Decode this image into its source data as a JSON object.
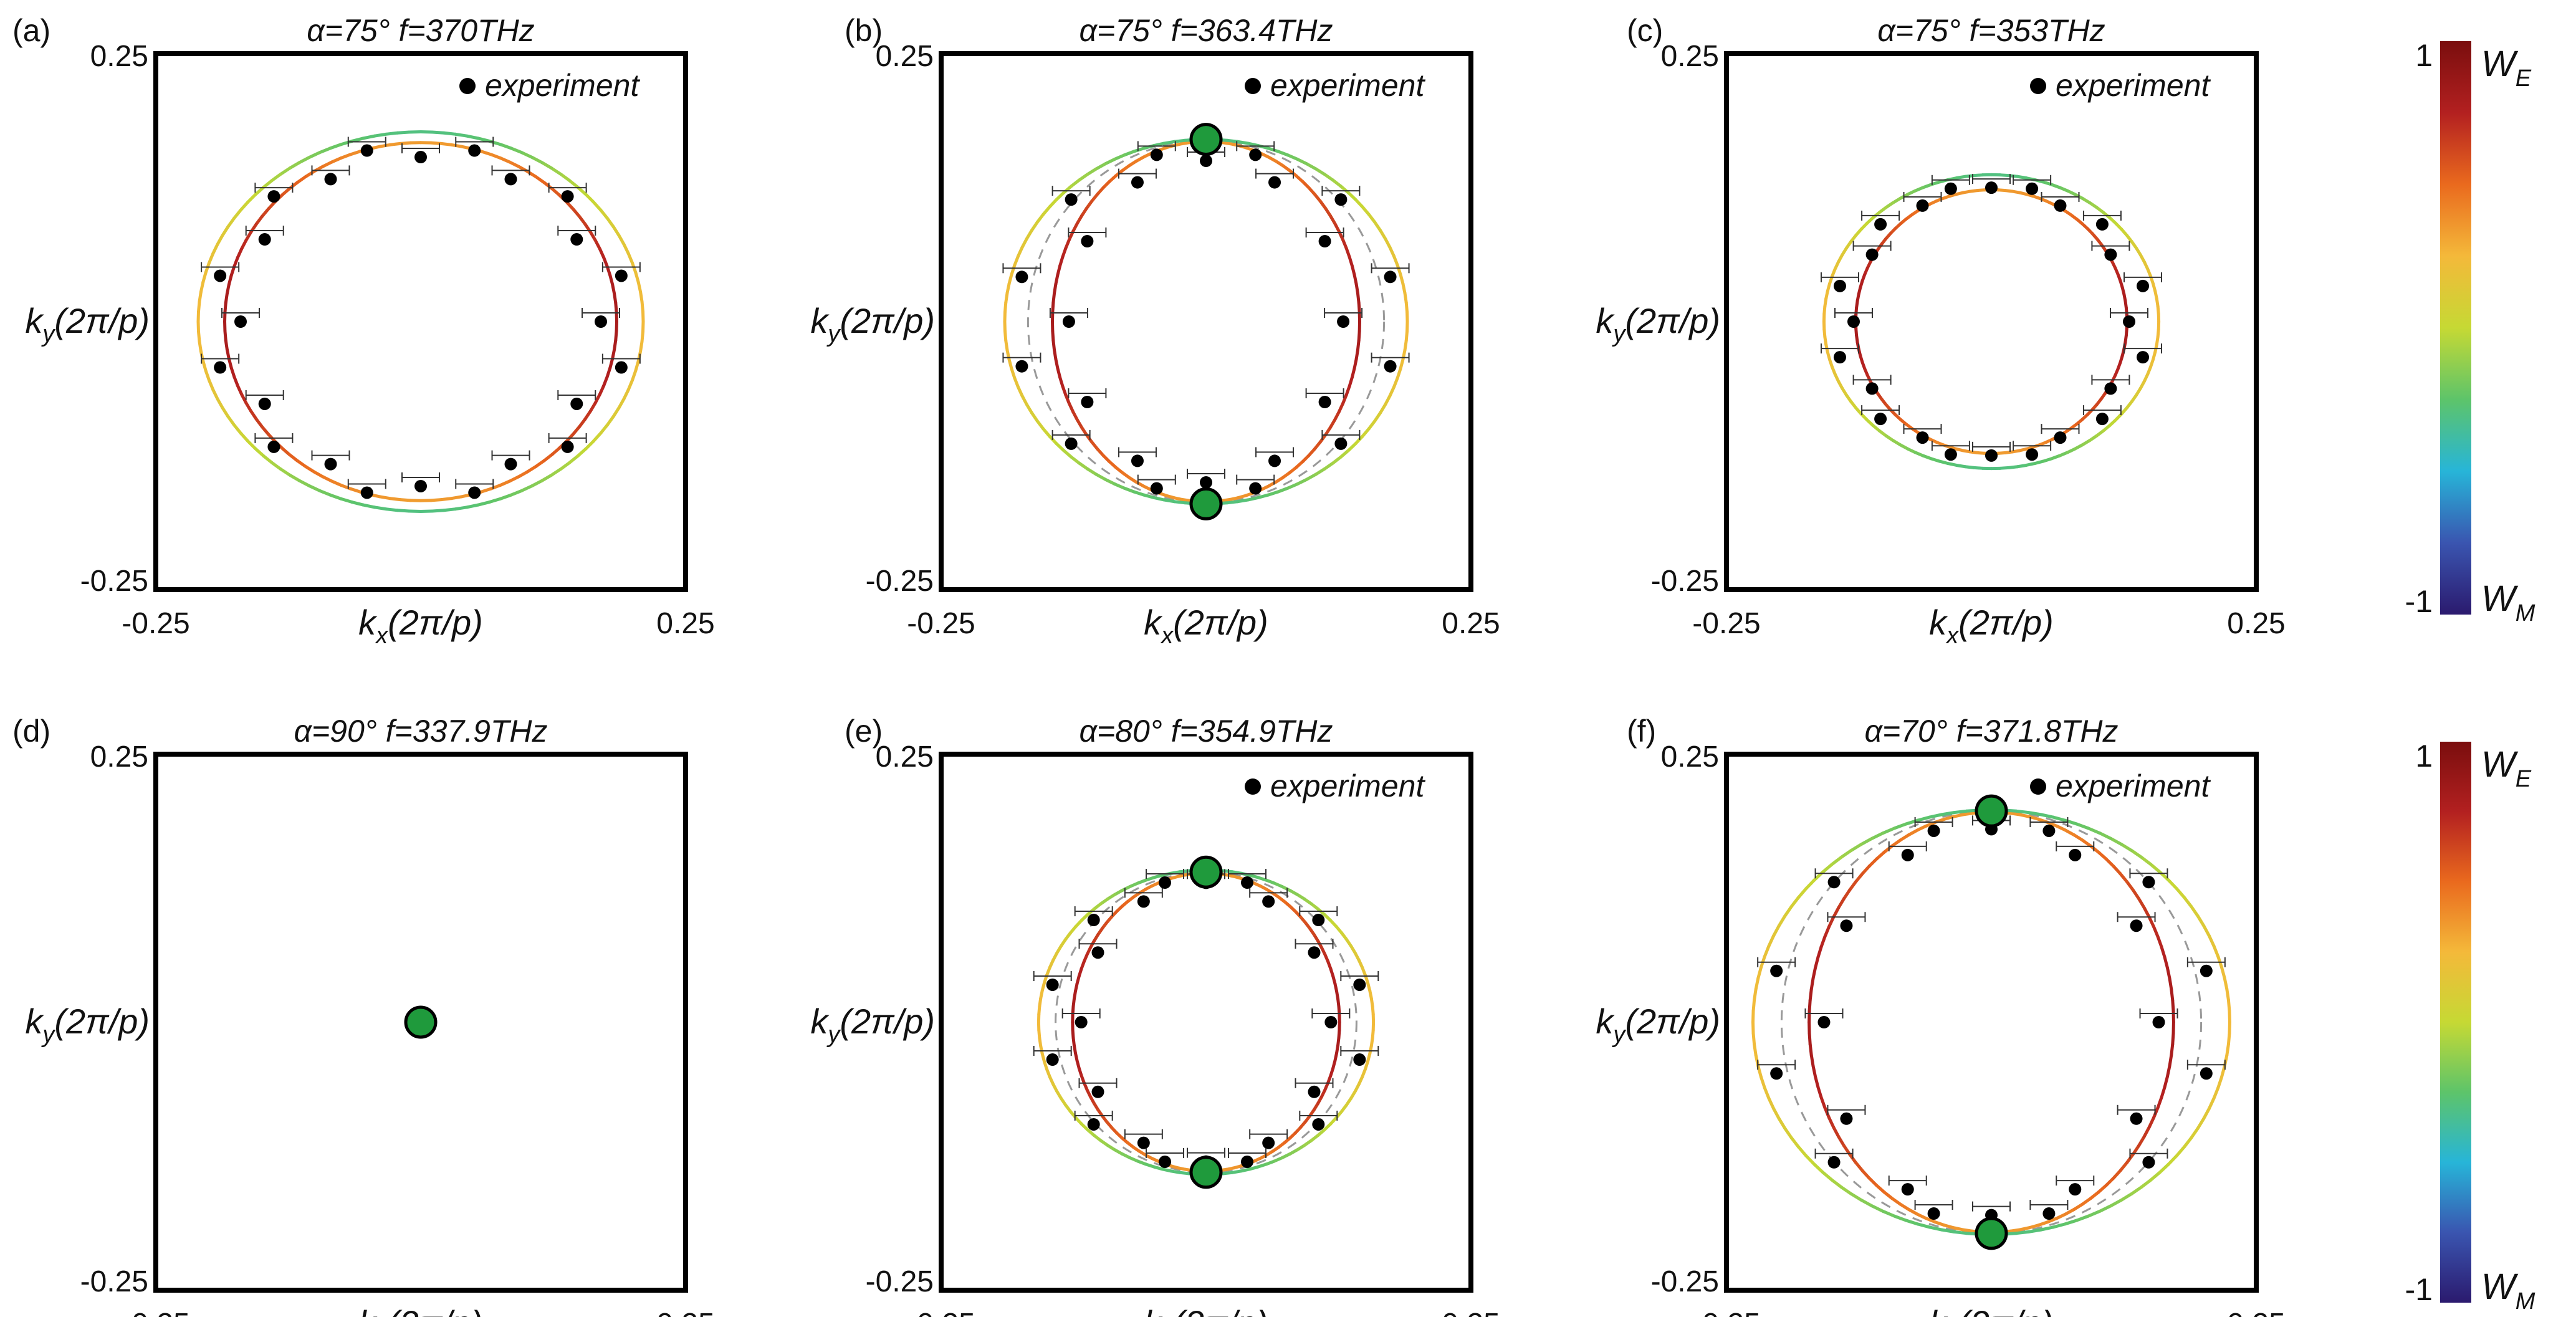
{
  "panel_defaults": {
    "xlabel": "k",
    "xlabel_sub": "x",
    "xlabel_unit": "(2π/p)",
    "ylabel": "k",
    "ylabel_sub": "y",
    "ylabel_unit": "(2π/p)",
    "xlim": [
      -0.25,
      0.25
    ],
    "ylim": [
      -0.25,
      0.25
    ],
    "x_ticks": [
      "-0.25",
      "0.25"
    ],
    "y_ticks": [
      "0.25",
      "-0.25"
    ],
    "legend_label": "experiment",
    "legend_position": "top-right"
  },
  "chart_data": [
    {
      "type": "scatter",
      "panel_label": "(a)",
      "title": "α=75° f=370THz",
      "legend": true,
      "bands": [
        {
          "rx": 0.185,
          "ry": 0.167,
          "color_by": "inner"
        },
        {
          "rx": 0.21,
          "ry": 0.177,
          "color_by": "outer"
        }
      ],
      "dashed_rings": [],
      "bic_points": [],
      "experiment_points": [
        {
          "r": 0.17,
          "angles": [
            0,
            30,
            60,
            90,
            120,
            150,
            180,
            210,
            240,
            270,
            300,
            330
          ]
        },
        {
          "r": 0.196,
          "angles": [
            15,
            45,
            75,
            105,
            135,
            165,
            195,
            225,
            255,
            285,
            315,
            345
          ]
        }
      ]
    },
    {
      "type": "scatter",
      "panel_label": "(b)",
      "title": "α=75° f=363.4THz",
      "legend": true,
      "bands": [
        {
          "rx": 0.145,
          "ry": 0.168,
          "color_by": "inner"
        },
        {
          "rx": 0.19,
          "ry": 0.17,
          "color_by": "outer"
        }
      ],
      "dashed_rings": [
        {
          "rx": 0.168,
          "ry": 0.169
        }
      ],
      "bic_points": [
        {
          "x": 0,
          "y": 0.17
        },
        {
          "x": 0,
          "y": -0.17
        }
      ],
      "experiment_points": [
        {
          "r": 0.15,
          "angles": [
            0,
            30,
            60,
            90,
            120,
            150,
            180,
            210,
            240,
            270,
            300,
            330
          ]
        },
        {
          "r": 0.18,
          "angles": [
            15,
            45,
            75,
            105,
            135,
            165,
            195,
            225,
            255,
            285,
            315,
            345
          ]
        }
      ]
    },
    {
      "type": "scatter",
      "panel_label": "(c)",
      "title": "α=75° f=353THz",
      "legend": true,
      "bands": [
        {
          "rx": 0.128,
          "ry": 0.123,
          "color_by": "inner"
        },
        {
          "rx": 0.158,
          "ry": 0.137,
          "color_by": "outer"
        }
      ],
      "dashed_rings": [],
      "bic_points": [],
      "experiment_points": [
        {
          "r": 0.13,
          "angles": [
            0,
            30,
            60,
            90,
            120,
            150,
            180,
            210,
            240,
            270,
            300,
            330
          ]
        },
        {
          "r": 0.148,
          "angles": [
            15,
            45,
            75,
            105,
            135,
            165,
            195,
            225,
            255,
            285,
            315,
            345
          ]
        }
      ]
    },
    {
      "type": "scatter",
      "panel_label": "(d)",
      "title": "α=90° f=337.9THz",
      "legend": false,
      "bands": [],
      "dashed_rings": [],
      "bic_points": [
        {
          "x": 0,
          "y": 0
        }
      ],
      "experiment_points": []
    },
    {
      "type": "scatter",
      "panel_label": "(e)",
      "title": "α=80° f=354.9THz",
      "legend": true,
      "bands": [
        {
          "rx": 0.126,
          "ry": 0.139,
          "color_by": "inner"
        },
        {
          "rx": 0.158,
          "ry": 0.142,
          "color_by": "outer"
        }
      ],
      "dashed_rings": [
        {
          "rx": 0.142,
          "ry": 0.14
        }
      ],
      "bic_points": [
        {
          "x": 0,
          "y": 0.14
        },
        {
          "x": 0,
          "y": -0.14
        }
      ],
      "experiment_points": [
        {
          "r": 0.13,
          "angles": [
            0,
            30,
            60,
            90,
            120,
            150,
            180,
            210,
            240,
            270,
            300,
            330
          ]
        },
        {
          "r": 0.15,
          "angles": [
            15,
            45,
            75,
            105,
            135,
            165,
            195,
            225,
            255,
            285,
            315,
            345
          ]
        }
      ]
    },
    {
      "type": "scatter",
      "panel_label": "(f)",
      "title": "α=70° f=371.8THz",
      "legend": true,
      "bands": [
        {
          "rx": 0.172,
          "ry": 0.196,
          "color_by": "inner"
        },
        {
          "rx": 0.225,
          "ry": 0.198,
          "color_by": "outer"
        }
      ],
      "dashed_rings": [
        {
          "rx": 0.198,
          "ry": 0.197
        }
      ],
      "bic_points": [
        {
          "x": 0,
          "y": 0.197
        },
        {
          "x": 0,
          "y": -0.197
        }
      ],
      "experiment_points": [
        {
          "r": 0.18,
          "angles": [
            0,
            30,
            60,
            90,
            120,
            150,
            180,
            210,
            240,
            270,
            300,
            330
          ]
        },
        {
          "r": 0.21,
          "angles": [
            15,
            45,
            75,
            105,
            135,
            165,
            195,
            225,
            255,
            285,
            315,
            345
          ]
        }
      ]
    }
  ],
  "colorbars": [
    {
      "top_value": "1",
      "bottom_value": "-1",
      "top_label": "W",
      "top_sub": "E",
      "bottom_label": "W",
      "bottom_sub": "M",
      "range": [
        -1,
        1
      ]
    },
    {
      "top_value": "1",
      "bottom_value": "-1",
      "top_label": "W",
      "top_sub": "E",
      "bottom_label": "W",
      "bottom_sub": "M",
      "range": [
        -1,
        1
      ]
    }
  ],
  "colors": {
    "bic_fill": "#1f9a3c",
    "point": "#000000",
    "dashed": "#999999",
    "colormap": [
      "#2b1a6e",
      "#3a55b0",
      "#27b5d8",
      "#5dc46a",
      "#c6d934",
      "#f4b93a",
      "#ea6a1e",
      "#b32020",
      "#7a0e0e"
    ]
  }
}
